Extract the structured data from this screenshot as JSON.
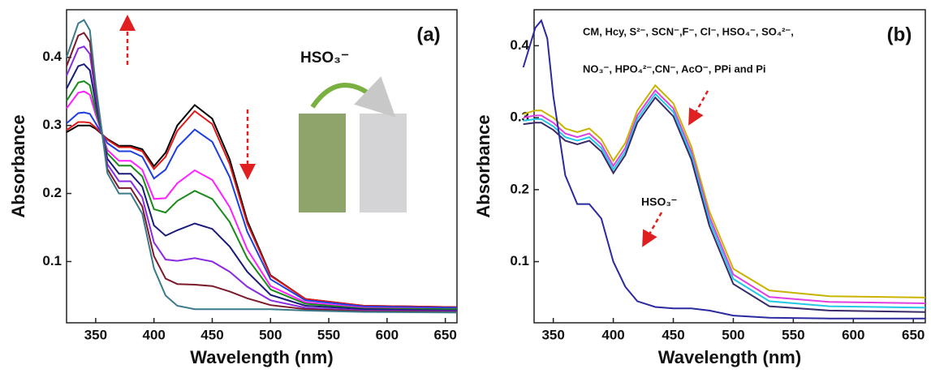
{
  "chart_data": [
    {
      "type": "line",
      "annotations": [
        "(a)",
        "HSO₃⁻"
      ],
      "xlabel": "Wavelength (nm)",
      "ylabel": "Absorbance",
      "x": [
        325,
        335,
        340,
        345,
        350,
        360,
        370,
        380,
        390,
        400,
        410,
        420,
        435,
        450,
        465,
        480,
        500,
        530,
        580,
        660
      ],
      "xlim": [
        325,
        660
      ],
      "xticks": [
        350,
        400,
        450,
        500,
        550,
        600,
        650
      ],
      "ylim": [
        0.01,
        0.47
      ],
      "yticks": [
        0.1,
        0.2,
        0.3,
        0.4
      ],
      "series": [
        {
          "color": "#000000",
          "values": [
            0.29,
            0.3,
            0.3,
            0.3,
            0.295,
            0.28,
            0.27,
            0.27,
            0.265,
            0.24,
            0.26,
            0.3,
            0.33,
            0.31,
            0.25,
            0.16,
            0.08,
            0.045,
            0.035,
            0.033
          ]
        },
        {
          "color": "#e01818",
          "values": [
            0.293,
            0.305,
            0.305,
            0.304,
            0.297,
            0.279,
            0.268,
            0.268,
            0.262,
            0.236,
            0.254,
            0.292,
            0.321,
            0.302,
            0.243,
            0.156,
            0.079,
            0.045,
            0.035,
            0.033
          ]
        },
        {
          "color": "#1f3fe0",
          "values": [
            0.303,
            0.318,
            0.319,
            0.317,
            0.303,
            0.274,
            0.262,
            0.262,
            0.254,
            0.222,
            0.235,
            0.268,
            0.294,
            0.276,
            0.224,
            0.144,
            0.074,
            0.043,
            0.034,
            0.032
          ]
        },
        {
          "color": "#ff20ff",
          "values": [
            0.325,
            0.348,
            0.35,
            0.345,
            0.316,
            0.264,
            0.248,
            0.248,
            0.235,
            0.192,
            0.193,
            0.215,
            0.234,
            0.22,
            0.18,
            0.118,
            0.064,
            0.04,
            0.032,
            0.03
          ]
        },
        {
          "color": "#1a8a1a",
          "values": [
            0.336,
            0.363,
            0.365,
            0.359,
            0.322,
            0.259,
            0.241,
            0.241,
            0.225,
            0.177,
            0.172,
            0.189,
            0.204,
            0.192,
            0.158,
            0.105,
            0.059,
            0.038,
            0.031,
            0.03
          ]
        },
        {
          "color": "#1a1a7a",
          "values": [
            0.354,
            0.387,
            0.39,
            0.381,
            0.333,
            0.251,
            0.229,
            0.229,
            0.21,
            0.153,
            0.138,
            0.146,
            0.156,
            0.148,
            0.122,
            0.085,
            0.051,
            0.035,
            0.03,
            0.028
          ]
        },
        {
          "color": "#8a2be2",
          "values": [
            0.373,
            0.413,
            0.416,
            0.405,
            0.344,
            0.243,
            0.218,
            0.218,
            0.194,
            0.128,
            0.103,
            0.101,
            0.105,
            0.1,
            0.085,
            0.063,
            0.043,
            0.032,
            0.028,
            0.027
          ]
        },
        {
          "color": "#7a1a2a",
          "values": [
            0.387,
            0.432,
            0.436,
            0.423,
            0.352,
            0.236,
            0.208,
            0.208,
            0.181,
            0.108,
            0.075,
            0.067,
            0.066,
            0.064,
            0.056,
            0.046,
            0.036,
            0.03,
            0.027,
            0.026
          ]
        },
        {
          "color": "#3a7a8a",
          "values": [
            0.4,
            0.45,
            0.455,
            0.44,
            0.36,
            0.23,
            0.2,
            0.2,
            0.17,
            0.09,
            0.05,
            0.035,
            0.03,
            0.03,
            0.03,
            0.03,
            0.03,
            0.028,
            0.026,
            0.025
          ]
        }
      ]
    },
    {
      "type": "line",
      "annotations": [
        "(b)",
        "CM, Hcy, S²⁻, SCN⁻,F⁻, Cl⁻, HSO₄⁻, SO₄²⁻,",
        "NO₃⁻, HPO₄²⁻,CN⁻, AcO⁻, PPi and Pi",
        "HSO₃⁻"
      ],
      "xlabel": "Wavelength (nm)",
      "ylabel": "Absorbance",
      "x": [
        325,
        335,
        340,
        345,
        350,
        360,
        370,
        380,
        390,
        400,
        410,
        420,
        435,
        450,
        465,
        480,
        500,
        530,
        580,
        660
      ],
      "xlim": [
        334,
        660
      ],
      "xticks": [
        350,
        400,
        450,
        500,
        550,
        600,
        650
      ],
      "ylim": [
        0.015,
        0.45
      ],
      "yticks": [
        0.1,
        0.2,
        0.3,
        0.4
      ],
      "series": [
        {
          "color": "#c8b400",
          "values": [
            0.305,
            0.31,
            0.31,
            0.305,
            0.3,
            0.285,
            0.28,
            0.285,
            0.27,
            0.24,
            0.265,
            0.31,
            0.345,
            0.32,
            0.26,
            0.17,
            0.09,
            0.06,
            0.052,
            0.05
          ]
        },
        {
          "color": "#e040e0",
          "values": [
            0.3,
            0.303,
            0.303,
            0.298,
            0.293,
            0.278,
            0.273,
            0.278,
            0.263,
            0.233,
            0.258,
            0.303,
            0.338,
            0.313,
            0.253,
            0.163,
            0.082,
            0.051,
            0.044,
            0.042
          ]
        },
        {
          "color": "#22c8e6",
          "values": [
            0.296,
            0.298,
            0.298,
            0.293,
            0.288,
            0.273,
            0.268,
            0.273,
            0.258,
            0.228,
            0.253,
            0.298,
            0.333,
            0.308,
            0.248,
            0.157,
            0.076,
            0.045,
            0.038,
            0.036
          ]
        },
        {
          "color": "#3a2a6a",
          "values": [
            0.291,
            0.293,
            0.293,
            0.288,
            0.283,
            0.268,
            0.263,
            0.268,
            0.253,
            0.223,
            0.248,
            0.293,
            0.328,
            0.302,
            0.242,
            0.15,
            0.069,
            0.038,
            0.032,
            0.03
          ]
        },
        {
          "color": "#2a2aa0",
          "values": [
            0.37,
            0.425,
            0.435,
            0.41,
            0.33,
            0.22,
            0.18,
            0.18,
            0.16,
            0.1,
            0.065,
            0.045,
            0.037,
            0.035,
            0.035,
            0.032,
            0.025,
            0.022,
            0.021,
            0.021
          ]
        }
      ]
    }
  ]
}
